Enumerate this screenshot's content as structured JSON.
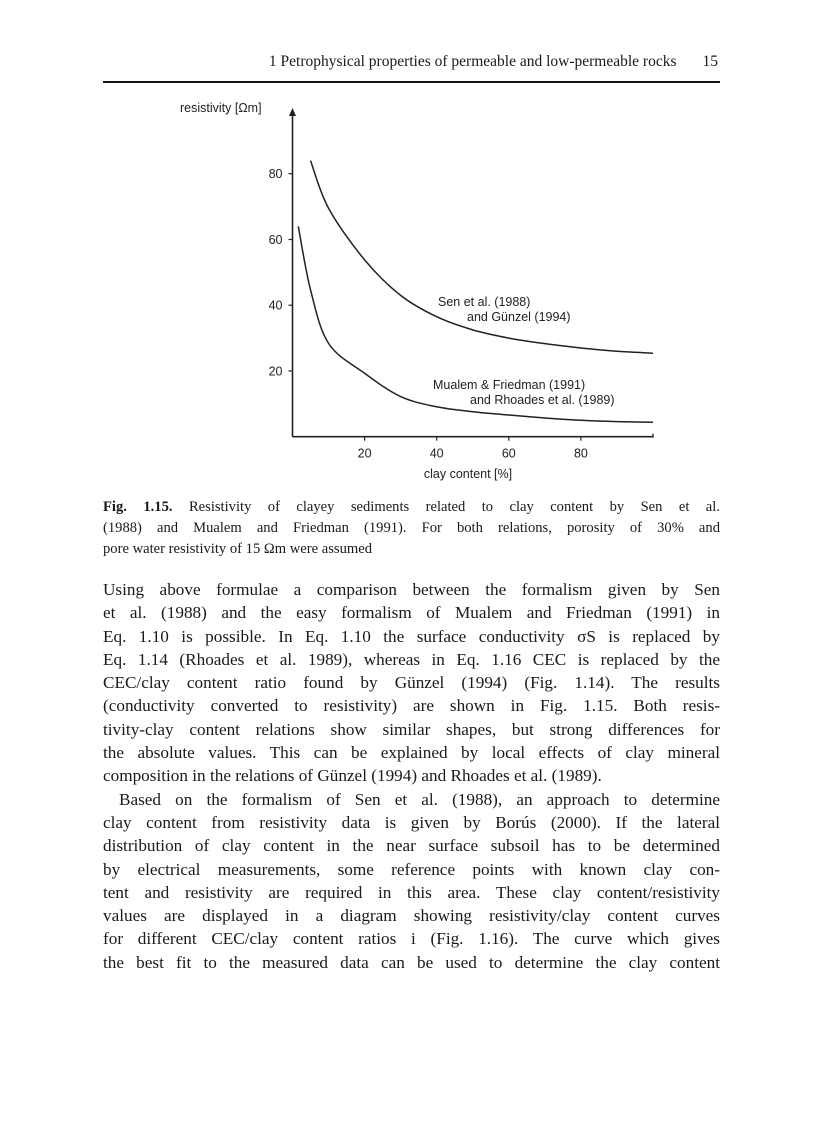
{
  "header": {
    "title": "1 Petrophysical properties of permeable and low-permeable rocks",
    "page_number": "15"
  },
  "chart_data": {
    "type": "line",
    "xlabel": "clay content [%]",
    "ylabel": "resistivity [Ωm]",
    "xlim": [
      0,
      100
    ],
    "ylim": [
      0,
      100
    ],
    "x_ticks": [
      20,
      40,
      60,
      80
    ],
    "y_ticks": [
      20,
      40,
      60,
      80
    ],
    "grid": false,
    "series": [
      {
        "name": "Sen et al. (1988) and Günzel (1994)",
        "label_lines": [
          "Sen et al. (1988)",
          "and Günzel (1994)"
        ],
        "x": [
          5,
          10,
          20,
          30,
          40,
          50,
          60,
          70,
          80,
          90,
          100
        ],
        "y": [
          84,
          69.5,
          53.8,
          43,
          36.5,
          32.5,
          30,
          28.3,
          27,
          26,
          25.4
        ]
      },
      {
        "name": "Mualem & Friedman (1991) and Rhoades et al. (1989)",
        "label_lines": [
          "Mualem & Friedman (1991)",
          "and Rhoades et al. (1989)"
        ],
        "x": [
          1.6,
          5,
          10,
          20,
          30,
          40,
          50,
          60,
          70,
          80,
          90,
          100
        ],
        "y": [
          64,
          44.7,
          28.4,
          19.3,
          12.2,
          9.1,
          7.6,
          6.6,
          5.7,
          5,
          4.6,
          4.4
        ]
      }
    ]
  },
  "caption": {
    "label": "Fig. 1.15.",
    "lines": [
      "Resistivity of clayey sediments related to clay content by Sen et al.",
      "(1988) and Mualem and Friedman (1991). For both relations, porosity of 30% and",
      "pore water resistivity of 15 Ωm were assumed"
    ]
  },
  "body": {
    "paragraph1": [
      "Using above formulae a comparison between the formalism given by Sen",
      "et al. (1988) and the easy formalism of Mualem and Friedman (1991) in",
      "Eq. 1.10 is possible. In Eq. 1.10 the surface conductivity σS is replaced by",
      "Eq. 1.14 (Rhoades et al. 1989), whereas in Eq. 1.16 CEC is replaced by the",
      "CEC/clay content ratio found by Günzel (1994) (Fig. 1.14). The results",
      "(conductivity converted to resistivity) are shown in Fig. 1.15. Both resis-",
      "tivity-clay content relations show similar shapes, but strong differences for",
      "the absolute values. This can be explained by local effects of clay mineral",
      "composition in the relations of Günzel (1994) and Rhoades et al. (1989)."
    ],
    "paragraph2": [
      "Based on the formalism of Sen et al. (1988), an approach to determine",
      "clay content from resistivity data is given by Borús (2000). If the lateral",
      "distribution of clay content in the near surface subsoil has to be determined",
      "by electrical measurements, some reference points with known clay con-",
      "tent and resistivity are required in this area. These clay content/resistivity",
      "values are displayed in a diagram showing resistivity/clay content curves",
      "for different CEC/clay content ratios i (Fig. 1.16). The curve which gives",
      "the best fit to the measured data can be used to determine the clay content"
    ]
  }
}
